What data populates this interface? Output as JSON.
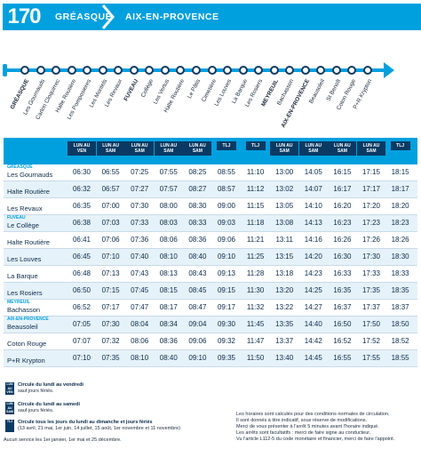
{
  "header": {
    "line_number": "170",
    "origin": "GRÉASQUE",
    "destination": "AIX-EN-PROVENCE"
  },
  "route": {
    "stops": [
      {
        "label": "GRÉASQUE",
        "main": true
      },
      {
        "label": "Les Gournauds",
        "main": false
      },
      {
        "label": "Carlon Cloquirrec",
        "main": false
      },
      {
        "label": "Halte Routière",
        "main": false
      },
      {
        "label": "Les Pomposieres",
        "main": false
      },
      {
        "label": "Les Montels",
        "main": false
      },
      {
        "label": "Les Revaux",
        "main": false
      },
      {
        "label": "FUVEAU",
        "main": true
      },
      {
        "label": "Collège",
        "main": false
      },
      {
        "label": "Les Vertus",
        "main": false
      },
      {
        "label": "Halte Routière",
        "main": false
      },
      {
        "label": "Le Pâtis",
        "main": false
      },
      {
        "label": "Cimetière",
        "main": false
      },
      {
        "label": "Les Louves",
        "main": false
      },
      {
        "label": "La Barque",
        "main": false
      },
      {
        "label": "Les Rosiers",
        "main": false
      },
      {
        "label": "MEYREUIL",
        "main": true
      },
      {
        "label": "Bachasson",
        "main": false
      },
      {
        "label": "AIX-EN-PROVENCE",
        "main": true
      },
      {
        "label": "Beausoleil",
        "main": false
      },
      {
        "label": "St Benoît",
        "main": false
      },
      {
        "label": "Coton Rouge",
        "main": false
      },
      {
        "label": "P+R Krypton",
        "main": false
      }
    ]
  },
  "table": {
    "col_tags": [
      "LUN AU VEN",
      "LUN AU SAM",
      "LUN AU SAM",
      "LUN AU SAM",
      "LUN AU SAM",
      "TLJ",
      "TLJ",
      "LUN AU SAM",
      "LUN AU SAM",
      "LUN AU SAM",
      "LUN AU SAM",
      "TLJ"
    ],
    "rows": [
      {
        "zone": "GRÉASQUE",
        "name": "Les Gournauds",
        "times": [
          "06:30",
          "06:55",
          "07:25",
          "07:55",
          "08:25",
          "08:55",
          "11:10",
          "13:00",
          "14:05",
          "16:15",
          "17:15",
          "18:15"
        ]
      },
      {
        "zone": "",
        "name": "Halte Routière",
        "times": [
          "06:32",
          "06:57",
          "07:27",
          "07:57",
          "08:27",
          "08:57",
          "11:12",
          "13:02",
          "14:07",
          "16:17",
          "17:17",
          "18:17"
        ]
      },
      {
        "zone": "",
        "name": "Les Revaux",
        "times": [
          "06:35",
          "07:00",
          "07:30",
          "08:00",
          "08:30",
          "09:00",
          "11:15",
          "13:05",
          "14:10",
          "16:20",
          "17:20",
          "18:20"
        ]
      },
      {
        "zone": "FUVEAU",
        "name": "Le Collège",
        "times": [
          "06:38",
          "07:03",
          "07:33",
          "08:03",
          "08:33",
          "09:03",
          "11:18",
          "13:08",
          "14:13",
          "16:23",
          "17:23",
          "18:23"
        ]
      },
      {
        "zone": "",
        "name": "Halte Routière",
        "times": [
          "06:41",
          "07:06",
          "07:36",
          "08:06",
          "08:36",
          "09:06",
          "11:21",
          "13:11",
          "14:16",
          "16:26",
          "17:26",
          "18:26"
        ]
      },
      {
        "zone": "",
        "name": "Les Louves",
        "times": [
          "06:45",
          "07:10",
          "07:40",
          "08:10",
          "08:40",
          "09:10",
          "11:25",
          "13:15",
          "14:20",
          "16:30",
          "17:30",
          "18:30"
        ]
      },
      {
        "zone": "",
        "name": "La Barque",
        "times": [
          "06:48",
          "07:13",
          "07:43",
          "08:13",
          "08:43",
          "09:13",
          "11:28",
          "13:18",
          "14:23",
          "16:33",
          "17:33",
          "18:33"
        ]
      },
      {
        "zone": "",
        "name": "Les Rosiers",
        "times": [
          "06:50",
          "07:15",
          "07:45",
          "08:15",
          "08:45",
          "09:15",
          "11:30",
          "13:20",
          "14:25",
          "16:35",
          "17:35",
          "18:35"
        ]
      },
      {
        "zone": "MEYREUIL",
        "name": "Bachasson",
        "times": [
          "06:52",
          "07:17",
          "07:47",
          "08:17",
          "08:47",
          "09:17",
          "11:32",
          "13:22",
          "14:27",
          "16:37",
          "17:37",
          "18:37"
        ]
      },
      {
        "zone": "AIX-EN-PROVENCE",
        "name": "Beausoleil",
        "times": [
          "07:05",
          "07:30",
          "08:04",
          "08:34",
          "09:04",
          "09:30",
          "11:45",
          "13:35",
          "14:40",
          "16:50",
          "17:50",
          "18:50"
        ]
      },
      {
        "zone": "",
        "name": "Coton Rouge",
        "times": [
          "07:07",
          "07:32",
          "08:06",
          "08:36",
          "09:06",
          "09:32",
          "11:47",
          "13:37",
          "14:42",
          "16:52",
          "17:52",
          "18:52"
        ]
      },
      {
        "zone": "",
        "name": "P+R Krypton",
        "times": [
          "07:10",
          "07:35",
          "08:10",
          "08:40",
          "09:10",
          "09:35",
          "11:50",
          "13:40",
          "14:45",
          "16:55",
          "17:55",
          "18:55"
        ]
      }
    ]
  },
  "legend": {
    "item1": {
      "tag": "LUN AU VEN",
      "title": "Circule du lundi au vendredi",
      "sub": "sauf jours fériés."
    },
    "item2": {
      "tag": "LUN AU SAM",
      "title": "Circule du lundi au samedi",
      "sub": "sauf jours fériés."
    },
    "item3": {
      "tag": "TLJ",
      "title": "Circule tous les jours du lundi au dimanche et jours fériés",
      "sub": "(13 avril, 21 mai, 1er juin, 14 juillet, 15 août, 1er novembre et 11 novembre)"
    },
    "footer": "Aucun service les 1er janvier, 1er mai et 25 décembre.",
    "notes": [
      "Les horaires sont calculés pour des conditions normales de circulation.",
      "Il sont donnés à titre indicatif, sous réserve de modifications.",
      "Merci de vous présenter à l'arrêt 5 minutes avant l'horaire indiqué.",
      "Les arrêts sont facultatifs : merci de faire signe au conducteur.",
      "Vu l'article L112-5 du code monétaire et financier, merci de faire l'appoint."
    ]
  },
  "colors": {
    "accent": "#00a0df",
    "dark": "#0a3a63",
    "alt_row": "#e6f2fa"
  }
}
